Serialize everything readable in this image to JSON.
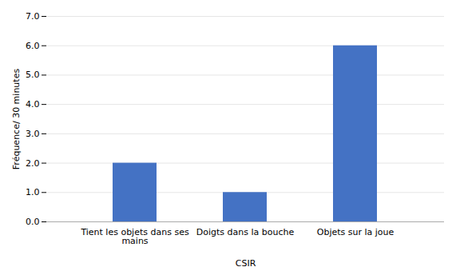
{
  "chart_data": {
    "type": "bar",
    "categories": [
      "Tient les objets dans ses\nmains",
      "Doigts dans la bouche",
      "Objets sur la joue"
    ],
    "values": [
      2,
      1,
      6
    ],
    "color": "#4472C4",
    "xlabel": "CSIR",
    "ylabel": "Fréquence/ 30 minutes",
    "ylim": [
      0,
      7
    ],
    "yticks": [
      0,
      1,
      2,
      3,
      4,
      5,
      6,
      7
    ],
    "grid": true
  }
}
